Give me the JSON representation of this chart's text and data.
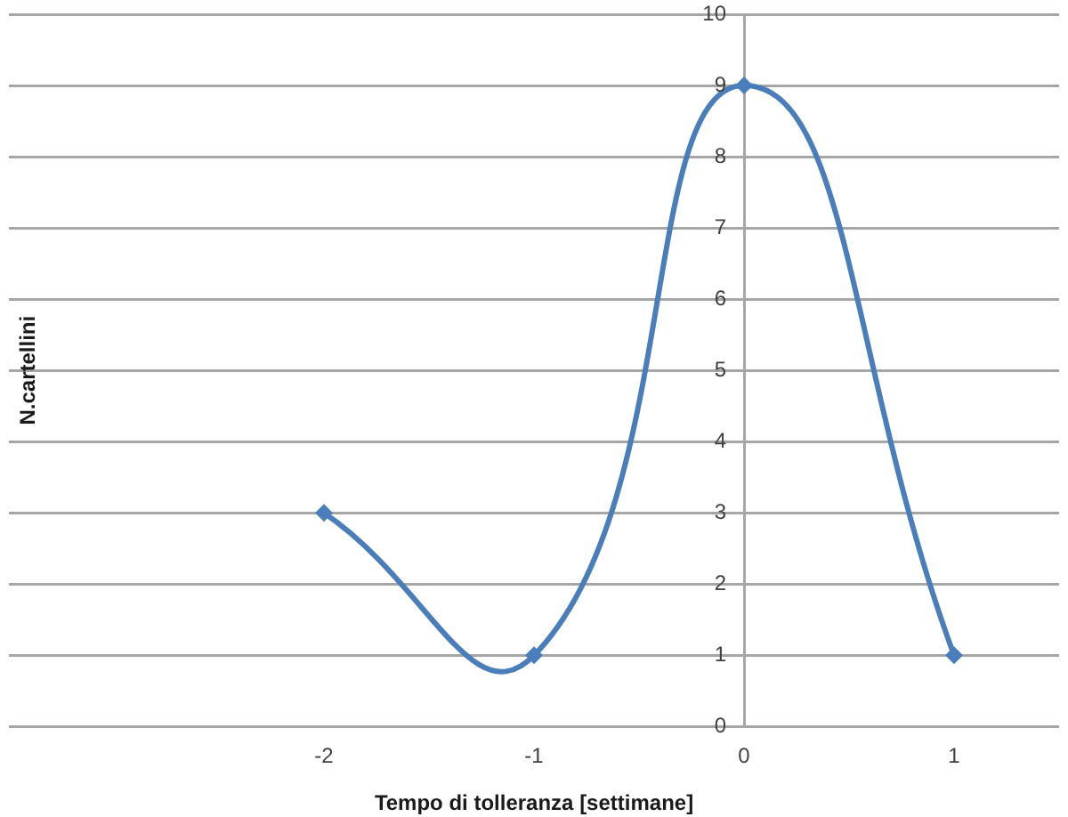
{
  "chart_data": {
    "type": "line",
    "xlabel": "Tempo di tolleranza [settimane]",
    "ylabel": "N.cartellini",
    "x": [
      -2,
      -1,
      0,
      1
    ],
    "series": [
      {
        "color": "#4a7ebb",
        "values": [
          3,
          1,
          9,
          1
        ]
      }
    ],
    "xlim": [
      -3.5,
      1.5
    ],
    "xticks": [
      -2,
      -1,
      0,
      1
    ],
    "ylim": [
      0,
      10
    ],
    "yticks": [
      0,
      1,
      2,
      3,
      4,
      5,
      6,
      7,
      8,
      9,
      10
    ],
    "grid": "y",
    "legend": false,
    "marker": "diamond",
    "line_style": "solid"
  }
}
